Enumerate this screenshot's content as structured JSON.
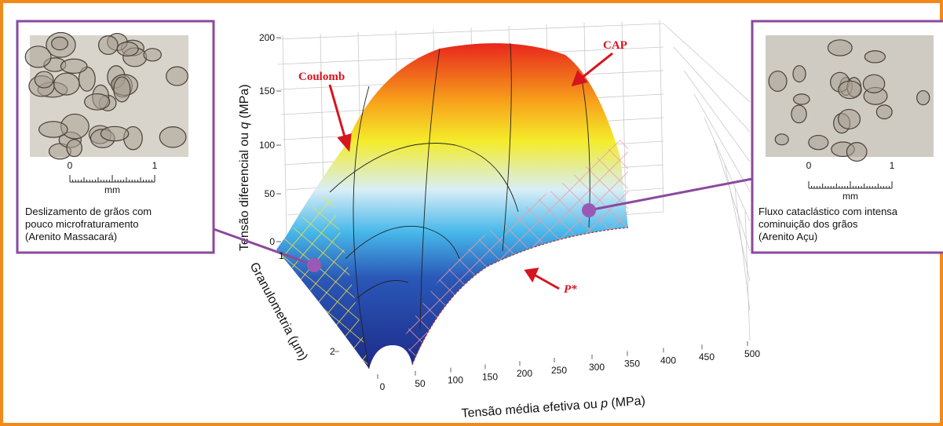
{
  "left_panel": {
    "scale": {
      "start": "0",
      "end": "1",
      "unit": "mm"
    },
    "caption": [
      "Deslizamento de grãos com",
      "pouco microfraturamento",
      "(Arenito Massacará)"
    ]
  },
  "right_panel": {
    "scale": {
      "start": "0",
      "end": "1",
      "unit": "mm"
    },
    "caption": [
      "Fluxo cataclástico com intensa",
      "cominuição dos grãos",
      "(Arenito Açu)"
    ]
  },
  "plot": {
    "z_axis": {
      "label": [
        "Tensão diferencial ou ",
        "q",
        " (MPa)"
      ],
      "ticks": [
        0,
        50,
        100,
        150,
        200
      ]
    },
    "g_axis": {
      "label": "Granulometria (µm)",
      "ticks": [
        1,
        2
      ]
    },
    "p_axis": {
      "label": [
        "Tensão média efetiva ou ",
        "p",
        " (MPa)"
      ],
      "ticks": [
        0,
        50,
        100,
        150,
        200,
        250,
        300,
        350,
        400,
        450,
        500
      ]
    },
    "annotations": {
      "coulomb": "Coulomb",
      "cap": "CAP",
      "p_star": "P*"
    }
  }
}
